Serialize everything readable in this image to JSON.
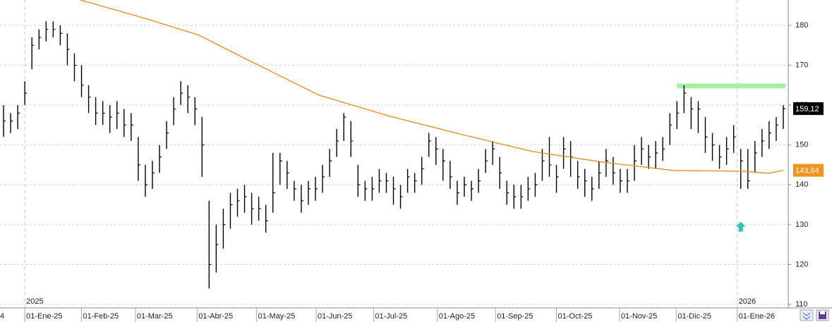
{
  "chart_data": {
    "type": "ohlc",
    "color": "#000000",
    "lows": [
      152,
      153,
      154,
      160,
      169,
      174,
      176,
      177,
      175,
      170,
      166,
      162,
      158,
      155,
      155,
      153,
      154,
      152,
      151,
      141,
      137,
      139,
      143,
      149,
      155,
      160,
      158,
      155,
      142,
      114,
      118,
      124,
      129,
      132,
      133,
      130,
      131,
      128,
      133,
      140,
      139,
      136,
      133,
      135,
      136,
      138,
      142,
      147,
      151,
      147,
      137,
      136,
      136,
      138,
      138,
      135,
      134,
      138,
      138,
      140,
      147,
      145,
      141,
      139,
      135,
      137,
      136,
      138,
      143,
      145,
      139,
      135,
      134,
      134,
      136,
      137,
      141,
      142,
      138,
      144,
      142,
      139,
      137,
      136,
      139,
      142,
      140,
      138,
      138,
      141,
      145,
      144,
      144,
      146,
      150,
      154,
      158,
      154,
      153,
      148,
      146,
      144,
      145,
      148,
      139,
      139,
      143,
      147,
      149,
      151,
      154
    ],
    "highs": [
      160,
      158,
      160,
      166,
      177,
      179,
      181,
      181,
      180,
      178,
      173,
      170,
      165,
      162,
      161,
      160,
      161,
      159,
      158,
      152,
      145,
      146,
      150,
      156,
      162,
      166,
      165,
      162,
      157,
      136,
      130,
      134,
      138,
      139,
      140,
      138,
      137,
      135,
      148,
      148,
      146,
      141,
      140,
      141,
      142,
      145,
      149,
      154,
      158,
      156,
      145,
      141,
      142,
      144,
      143,
      142,
      140,
      144,
      143,
      147,
      153,
      152,
      149,
      146,
      141,
      142,
      141,
      144,
      149,
      151,
      147,
      141,
      140,
      140,
      142,
      143,
      149,
      152,
      145,
      152,
      151,
      146,
      144,
      142,
      146,
      149,
      147,
      144,
      144,
      150,
      152,
      150,
      151,
      152,
      158,
      161,
      165,
      162,
      161,
      157,
      153,
      150,
      152,
      155,
      149,
      149,
      151,
      154,
      156,
      157,
      160
    ],
    "closes": [
      156,
      156,
      158,
      163,
      175,
      177,
      179,
      179,
      178,
      174,
      170,
      165,
      162,
      158,
      158,
      157,
      158,
      155,
      155,
      145,
      140,
      143,
      147,
      153,
      159,
      163,
      162,
      159,
      150,
      120,
      125,
      130,
      135,
      136,
      137,
      134,
      134,
      131,
      138,
      146,
      143,
      139,
      136,
      139,
      139,
      142,
      146,
      151,
      157,
      151,
      140,
      139,
      139,
      141,
      141,
      139,
      137,
      142,
      141,
      144,
      151,
      149,
      146,
      142,
      138,
      140,
      139,
      141,
      146,
      149,
      143,
      138,
      137,
      137,
      139,
      140,
      146,
      145,
      142,
      149,
      147,
      142,
      141,
      139,
      143,
      146,
      143,
      141,
      141,
      146,
      149,
      147,
      148,
      149,
      155,
      158,
      163,
      159,
      159,
      152,
      150,
      147,
      149,
      152,
      146,
      141,
      148,
      151,
      153,
      155,
      159.12
    ],
    "moving_average": {
      "color": "#e8891c",
      "x": [
        10.8,
        19.5,
        27.5,
        34.5,
        44.5,
        54.5,
        64.5,
        74.5,
        84.5,
        94.5,
        104.5,
        108,
        110
      ],
      "values": [
        186.4,
        182,
        177.6,
        171.3,
        162.5,
        157.2,
        152.7,
        148.4,
        145.7,
        143.6,
        143.4,
        142.9,
        143.64
      ]
    },
    "resistance": {
      "color": "#a6f0a6",
      "x": [
        95,
        110.3
      ],
      "y": 164.8
    },
    "arrow": {
      "color": "#2ec4b6",
      "x": 104,
      "y": 129.5
    },
    "last_labels": [
      {
        "value": 159.12,
        "label": "159,12",
        "color": "#000000"
      },
      {
        "value": 143.64,
        "label": "143,64",
        "color": "#f0941e"
      }
    ],
    "xlim": [
      -0.5,
      110.7
    ],
    "ylim": [
      109.12,
      186.37
    ],
    "yticks": [
      110,
      120,
      130,
      140,
      150,
      160,
      170,
      180
    ],
    "xticks": [
      {
        "value": -0.7,
        "label": "4"
      },
      {
        "value": 3,
        "label": "01-Ene-25"
      },
      {
        "value": 11,
        "label": "01-Feb-25"
      },
      {
        "value": 18.6,
        "label": "01-Mar-25"
      },
      {
        "value": 27.3,
        "label": "01-Abr-25"
      },
      {
        "value": 35.7,
        "label": "01-May-25"
      },
      {
        "value": 44.1,
        "label": "01-Jun-25"
      },
      {
        "value": 52.2,
        "label": "01-Jul-25"
      },
      {
        "value": 61.2,
        "label": "01-Ago-25"
      },
      {
        "value": 69.4,
        "label": "01-Sep-25"
      },
      {
        "value": 78,
        "label": "01-Oct-25"
      },
      {
        "value": 86.9,
        "label": "01-Nov-25"
      },
      {
        "value": 94.9,
        "label": "01-Dic-25"
      },
      {
        "value": 103.5,
        "label": "01-Ene-26"
      }
    ],
    "year_ticks": [
      {
        "value": 3,
        "label": "2025"
      },
      {
        "value": 103.5,
        "label": "2026"
      }
    ],
    "grid": true
  }
}
